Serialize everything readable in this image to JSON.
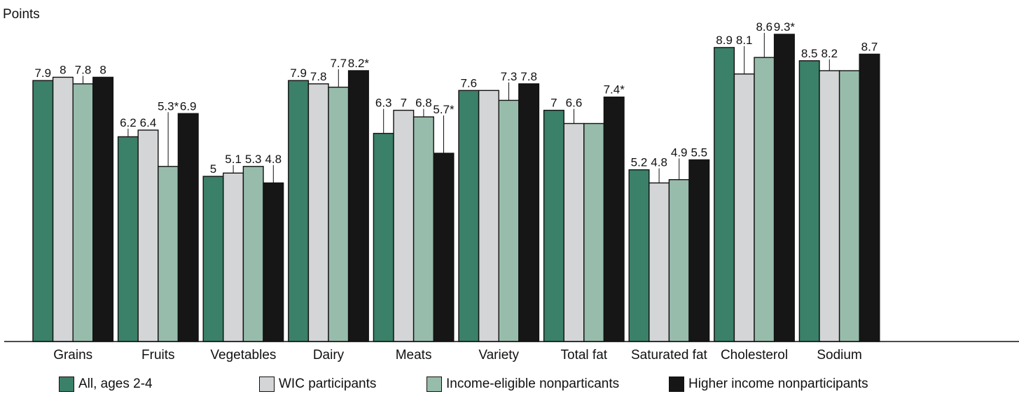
{
  "chart_data": {
    "type": "bar",
    "ylabel": "Points",
    "ylim": [
      0,
      10
    ],
    "grid": false,
    "legend_position": "bottom",
    "categories": [
      "Grains",
      "Fruits",
      "Vegetables",
      "Dairy",
      "Meats",
      "Variety",
      "Total fat",
      "Saturated fat",
      "Cholesterol",
      "Sodium"
    ],
    "series": [
      {
        "name": "All, ages 2-4",
        "color": "#3b8068",
        "values": [
          7.9,
          6.2,
          5.0,
          7.9,
          6.3,
          7.6,
          7.0,
          5.2,
          8.9,
          8.5
        ],
        "labels": [
          "7.9",
          "6.2",
          "5",
          "7.9",
          "6.3",
          "7.6",
          "7",
          "5.2",
          "8.9",
          "8.5"
        ]
      },
      {
        "name": "WIC participants",
        "color": "#d3d5d6",
        "values": [
          8.0,
          6.4,
          5.1,
          7.8,
          7.0,
          7.6,
          6.6,
          4.8,
          8.1,
          8.2
        ],
        "labels": [
          "8",
          "6.4",
          "5.1",
          "7.8",
          "7",
          "",
          "6.6",
          "4.8",
          "8.1",
          "8.2"
        ]
      },
      {
        "name": "Income-eligible nonparticants",
        "color": "#98bcab",
        "values": [
          7.8,
          5.3,
          5.3,
          7.7,
          6.8,
          7.3,
          6.6,
          4.9,
          8.6,
          8.2
        ],
        "labels": [
          "7.8",
          "5.3*",
          "5.3",
          "7.7",
          "6.8",
          "7.3",
          "",
          "4.9",
          "8.6",
          ""
        ]
      },
      {
        "name": "Higher income nonparticipants",
        "color": "#161616",
        "values": [
          8.0,
          6.9,
          4.8,
          8.2,
          5.7,
          7.8,
          7.4,
          5.5,
          9.3,
          8.7
        ],
        "labels": [
          "8",
          "6.9",
          "4.8",
          "8.2*",
          "5.7*",
          "7.8",
          "7.4*",
          "5.5",
          "9.3*",
          "8.7"
        ]
      }
    ]
  }
}
